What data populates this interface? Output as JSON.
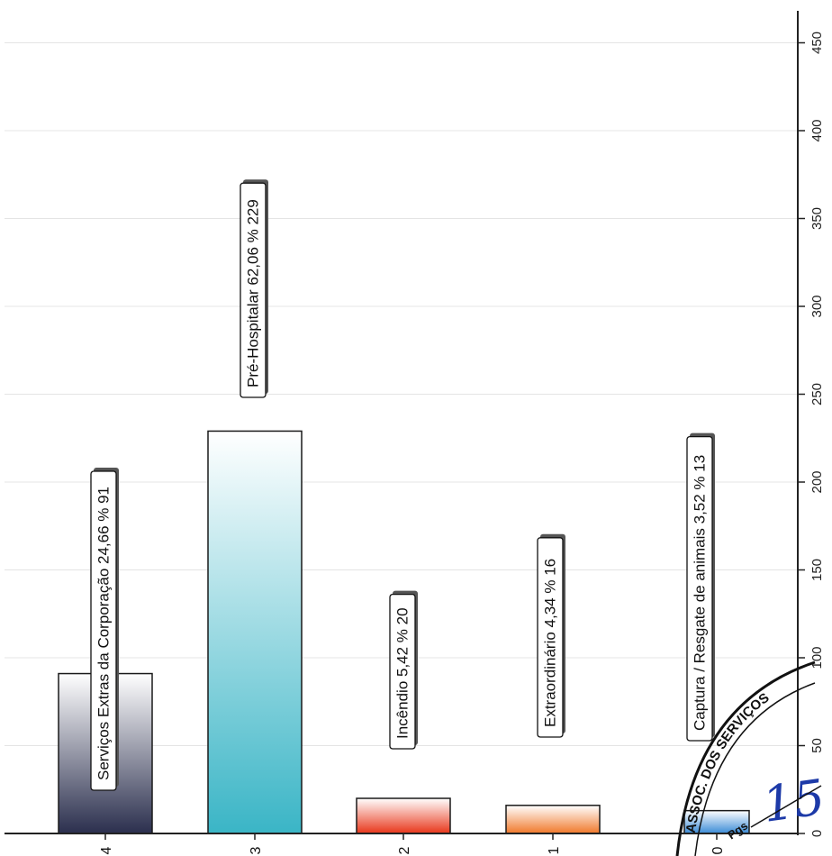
{
  "chart_data": {
    "type": "bar",
    "orientation": "rotated (bars vertical, value axis on right, labels read bottom-to-top)",
    "categories": [
      "4",
      "3",
      "2",
      "1",
      "0"
    ],
    "values": [
      91,
      229,
      20,
      16,
      13
    ],
    "data_labels": [
      "Serviços Extras da Corporação 24,66 % 91",
      "Pré-Hospitalar 62,06 % 229",
      "Incêndio 5,42 % 20",
      "Extraordinário 4,34 % 16",
      "Captura / Resgate de animais 3,52 % 13"
    ],
    "bar_colors": [
      [
        "#2b2f4e",
        "#ffffff"
      ],
      [
        "#3ab5c6",
        "#ffffff"
      ],
      [
        "#e8361a",
        "#ffffff"
      ],
      [
        "#f0782a",
        "#ffffff"
      ],
      [
        "#3a8bd6",
        "#ffffff"
      ]
    ],
    "value_ticks": [
      0,
      50,
      100,
      150,
      200,
      250,
      300,
      350,
      400,
      450
    ],
    "ylim": [
      0,
      470
    ],
    "grid": true,
    "title": "",
    "xlabel": "",
    "ylabel": ""
  },
  "stamp": {
    "text_top": "ASSOC. DOS SERVIÇOS",
    "text_bottom": "Pgs",
    "handwritten": "15"
  }
}
